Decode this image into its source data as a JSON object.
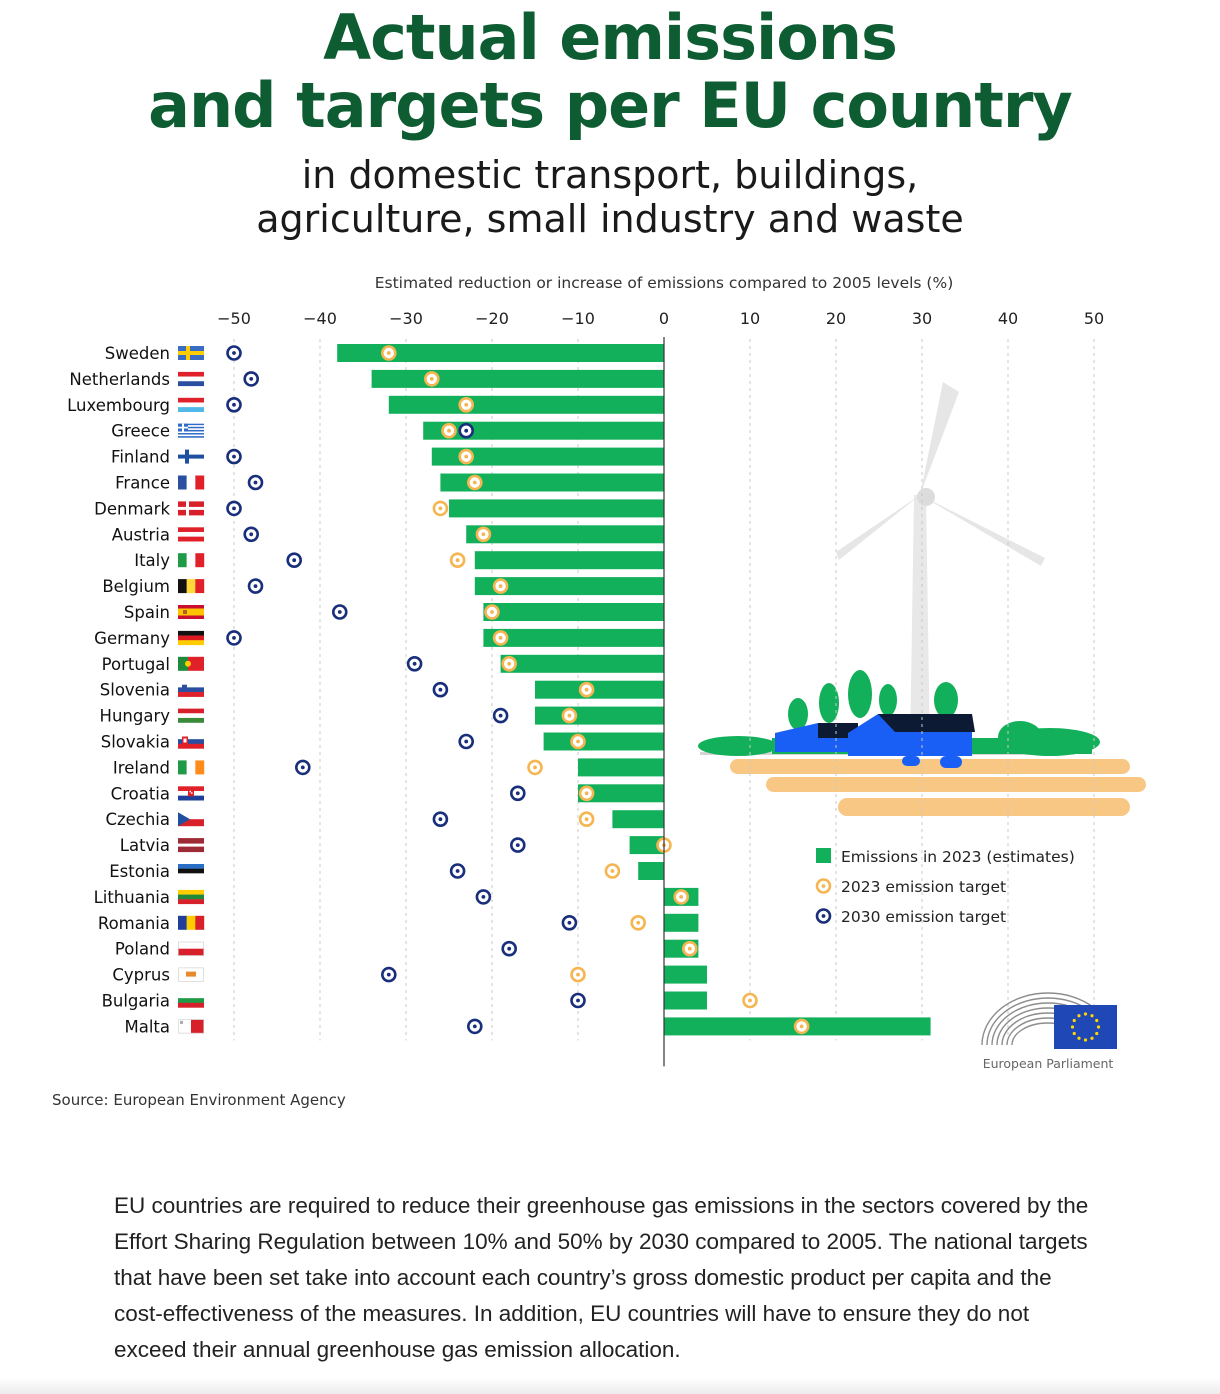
{
  "header": {
    "title_line1": "Actual emissions",
    "title_line2": "and targets per EU country",
    "subtitle_line1": "in domestic transport, buildings,",
    "subtitle_line2": "agriculture, small industry and waste"
  },
  "chart_data": {
    "type": "bar",
    "orientation": "horizontal",
    "xlabel": "Estimated reduction or increase of emissions compared to 2005 levels (%)",
    "xlim": [
      -50,
      50
    ],
    "xticks": [
      -50,
      -40,
      -30,
      -20,
      -10,
      0,
      10,
      20,
      30,
      40,
      50
    ],
    "grid": true,
    "legend_position": "right",
    "categories": [
      "Sweden",
      "Netherlands",
      "Luxembourg",
      "Greece",
      "Finland",
      "France",
      "Denmark",
      "Austria",
      "Italy",
      "Belgium",
      "Spain",
      "Germany",
      "Portugal",
      "Slovenia",
      "Hungary",
      "Slovakia",
      "Ireland",
      "Croatia",
      "Czechia",
      "Latvia",
      "Estonia",
      "Lithuania",
      "Romania",
      "Poland",
      "Cyprus",
      "Bulgaria",
      "Malta"
    ],
    "series": [
      {
        "name": "Emissions in 2023 (estimates)",
        "kind": "bar",
        "color": "#13b05c",
        "values": [
          -38,
          -34,
          -32,
          -28,
          -27,
          -26,
          -25,
          -23,
          -22,
          -22,
          -21,
          -21,
          -19,
          -15,
          -15,
          -14,
          -10,
          -10,
          -6,
          -4,
          -3,
          4,
          4,
          4,
          5,
          5,
          31
        ]
      },
      {
        "name": "2023 emission target",
        "kind": "marker",
        "color": "#f5b651",
        "values": [
          -32,
          -27,
          -23,
          -25,
          -23,
          -22,
          -26,
          -21,
          -24,
          -19,
          -20,
          -19,
          -18,
          -9,
          -11,
          -10,
          -15,
          -9,
          -9,
          0,
          -6,
          2,
          -3,
          3,
          -10,
          10,
          16
        ]
      },
      {
        "name": "2030 emission target",
        "kind": "marker",
        "color": "#1a2f7c",
        "values": [
          -50,
          -48,
          -50,
          -23,
          -50,
          -47.5,
          -50,
          -48,
          -43,
          -47.5,
          -37.7,
          -50,
          -29,
          -26,
          -19,
          -23,
          -42,
          -17,
          -26,
          -17,
          -24,
          -21,
          -11,
          -18,
          -32,
          -10,
          -22
        ]
      }
    ]
  },
  "legend": {
    "items": [
      {
        "label": "Emissions in 2023 (estimates)",
        "color": "#13b05c",
        "shape": "square"
      },
      {
        "label": "2023 emission target",
        "color": "#f5b651",
        "shape": "ring"
      },
      {
        "label": "2030 emission target",
        "color": "#1a2f7c",
        "shape": "ring"
      }
    ]
  },
  "logo": {
    "org": "European Parliament"
  },
  "source": "Source: European Environment Agency",
  "body_text": "EU countries are required to reduce their greenhouse gas emissions in the sectors covered by the Effort Sharing Regulation between 10% and 50% by 2030 compared to 2005. The national targets that have been set take into account each country’s gross domestic product per capita and the cost-effectiveness of the measures. In addition, EU countries will have to ensure they do not exceed their annual greenhouse gas emission allocation.",
  "flags": {
    "Sweden": "flag-sweden-icon",
    "Netherlands": "flag-netherlands-icon",
    "Luxembourg": "flag-luxembourg-icon",
    "Greece": "flag-greece-icon",
    "Finland": "flag-finland-icon",
    "France": "flag-france-icon",
    "Denmark": "flag-denmark-icon",
    "Austria": "flag-austria-icon",
    "Italy": "flag-italy-icon",
    "Belgium": "flag-belgium-icon",
    "Spain": "flag-spain-icon",
    "Germany": "flag-germany-icon",
    "Portugal": "flag-portugal-icon",
    "Slovenia": "flag-slovenia-icon",
    "Hungary": "flag-hungary-icon",
    "Slovakia": "flag-slovakia-icon",
    "Ireland": "flag-ireland-icon",
    "Croatia": "flag-croatia-icon",
    "Czechia": "flag-czechia-icon",
    "Latvia": "flag-latvia-icon",
    "Estonia": "flag-estonia-icon",
    "Lithuania": "flag-lithuania-icon",
    "Romania": "flag-romania-icon",
    "Poland": "flag-poland-icon",
    "Cyprus": "flag-cyprus-icon",
    "Bulgaria": "flag-bulgaria-icon",
    "Malta": "flag-malta-icon"
  }
}
